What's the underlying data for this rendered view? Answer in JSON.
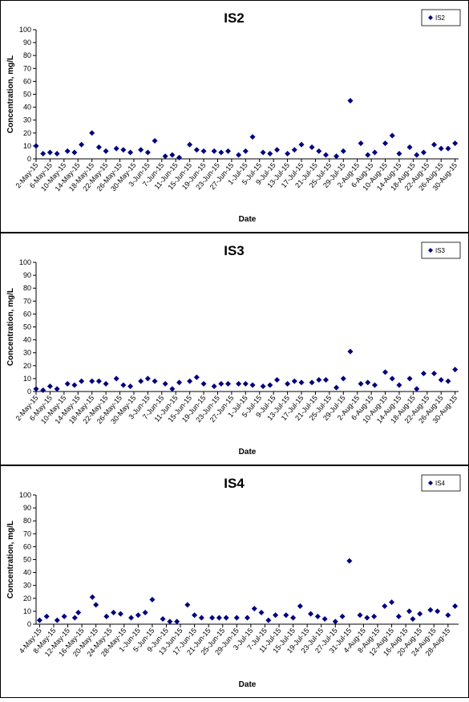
{
  "chart_data": [
    {
      "type": "scatter",
      "title": "IS2",
      "x_label": "Date",
      "y_label": "Concentration, mg/L",
      "x": [
        "2-May-15",
        "4-May-15",
        "6-May-15",
        "8-May-15",
        "11-May-15",
        "13-May-15",
        "15-May-15",
        "18-May-15",
        "20-May-15",
        "22-May-15",
        "25-May-15",
        "27-May-15",
        "29-May-15",
        "1-Jun-15",
        "3-Jun-15",
        "5-Jun-15",
        "8-Jun-15",
        "10-Jun-15",
        "12-Jun-15",
        "15-Jun-15",
        "17-Jun-15",
        "19-Jun-15",
        "22-Jun-15",
        "24-Jun-15",
        "26-Jun-15",
        "29-Jun-15",
        "1-Jul-15",
        "3-Jul-15",
        "6-Jul-15",
        "8-Jul-15",
        "10-Jul-15",
        "13-Jul-15",
        "15-Jul-15",
        "17-Jul-15",
        "20-Jul-15",
        "22-Jul-15",
        "24-Jul-15",
        "27-Jul-15",
        "29-Jul-15",
        "31-Jul-15",
        "3-Aug-15",
        "5-Aug-15",
        "7-Aug-15",
        "10-Aug-15",
        "12-Aug-15",
        "14-Aug-15",
        "17-Aug-15",
        "19-Aug-15",
        "21-Aug-15",
        "24-Aug-15",
        "26-Aug-15",
        "28-Aug-15",
        "30-Aug-15"
      ],
      "series": [
        {
          "name": "IS2",
          "color": "#000080",
          "values": [
            10,
            4,
            5,
            4,
            6,
            5,
            11,
            20,
            9,
            6,
            8,
            7,
            5,
            7,
            5,
            14,
            2,
            3,
            1,
            11,
            7,
            6,
            6,
            5,
            6,
            3,
            6,
            17,
            5,
            4,
            7,
            4,
            7,
            11,
            9,
            6,
            3,
            2,
            6,
            45,
            12,
            3,
            5,
            12,
            18,
            4,
            9,
            3,
            5,
            11,
            8,
            8,
            12
          ]
        }
      ],
      "xlim": [
        "2-May-15",
        "31-Aug-15"
      ],
      "xticks": [
        "2-May-15",
        "6-May-15",
        "10-May-15",
        "14-May-15",
        "18-May-15",
        "22-May-15",
        "26-May-15",
        "30-May-15",
        "3-Jun-15",
        "7-Jun-15",
        "11-Jun-15",
        "15-Jun-15",
        "19-Jun-15",
        "23-Jun-15",
        "27-Jun-15",
        "1-Jul-15",
        "5-Jul-15",
        "9-Jul-15",
        "13-Jul-15",
        "17-Jul-15",
        "21-Jul-15",
        "25-Jul-15",
        "29-Jul-15",
        "2-Aug-15",
        "6-Aug-15",
        "10-Aug-15",
        "14-Aug-15",
        "18-Aug-15",
        "22-Aug-15",
        "26-Aug-15",
        "30-Aug-15"
      ],
      "ylim": [
        0,
        100
      ],
      "yticks": [
        0,
        10,
        20,
        30,
        40,
        50,
        60,
        70,
        80,
        90,
        100
      ],
      "legend": "top-right"
    },
    {
      "type": "scatter",
      "title": "IS3",
      "x_label": "Date",
      "y_label": "Concentration, mg/L",
      "x": [
        "2-May-15",
        "4-May-15",
        "6-May-15",
        "8-May-15",
        "11-May-15",
        "13-May-15",
        "15-May-15",
        "18-May-15",
        "20-May-15",
        "22-May-15",
        "25-May-15",
        "27-May-15",
        "29-May-15",
        "1-Jun-15",
        "3-Jun-15",
        "5-Jun-15",
        "8-Jun-15",
        "10-Jun-15",
        "12-Jun-15",
        "15-Jun-15",
        "17-Jun-15",
        "19-Jun-15",
        "22-Jun-15",
        "24-Jun-15",
        "26-Jun-15",
        "29-Jun-15",
        "1-Jul-15",
        "3-Jul-15",
        "6-Jul-15",
        "8-Jul-15",
        "10-Jul-15",
        "13-Jul-15",
        "15-Jul-15",
        "17-Jul-15",
        "20-Jul-15",
        "22-Jul-15",
        "24-Jul-15",
        "27-Jul-15",
        "29-Jul-15",
        "31-Jul-15",
        "3-Aug-15",
        "5-Aug-15",
        "7-Aug-15",
        "10-Aug-15",
        "12-Aug-15",
        "14-Aug-15",
        "17-Aug-15",
        "19-Aug-15",
        "21-Aug-15",
        "24-Aug-15",
        "26-Aug-15",
        "28-Aug-15",
        "30-Aug-15"
      ],
      "series": [
        {
          "name": "IS3",
          "color": "#000080",
          "values": [
            2,
            1,
            4,
            2,
            6,
            5,
            8,
            8,
            8,
            6,
            10,
            5,
            4,
            8,
            10,
            8,
            6,
            2,
            7,
            8,
            11,
            6,
            4,
            6,
            6,
            6,
            6,
            5,
            4,
            5,
            9,
            6,
            8,
            7,
            7,
            9,
            9,
            3,
            10,
            31,
            6,
            7,
            5,
            15,
            10,
            5,
            10,
            2,
            14,
            14,
            9,
            8,
            17
          ]
        }
      ],
      "xlim": [
        "2-May-15",
        "31-Aug-15"
      ],
      "xticks": [
        "2-May-15",
        "6-May-15",
        "10-May-15",
        "14-May-15",
        "18-May-15",
        "22-May-15",
        "26-May-15",
        "30-May-15",
        "3-Jun-15",
        "7-Jun-15",
        "11-Jun-15",
        "15-Jun-15",
        "19-Jun-15",
        "23-Jun-15",
        "27-Jun-15",
        "1-Jul-15",
        "5-Jul-15",
        "9-Jul-15",
        "13-Jul-15",
        "17-Jul-15",
        "21-Jul-15",
        "25-Jul-15",
        "29-Jul-15",
        "2-Aug-15",
        "6-Aug-15",
        "10-Aug-15",
        "14-Aug-15",
        "18-Aug-15",
        "22-Aug-15",
        "26-Aug-15",
        "30-Aug-15"
      ],
      "ylim": [
        0,
        100
      ],
      "yticks": [
        0,
        10,
        20,
        30,
        40,
        50,
        60,
        70,
        80,
        90,
        100
      ],
      "legend": "top-right"
    },
    {
      "type": "scatter",
      "title": "IS4",
      "x_label": "Date",
      "y_label": "Concentration, mg/L",
      "x": [
        "4-May-15",
        "6-May-15",
        "9-May-15",
        "11-May-15",
        "14-May-15",
        "15-May-15",
        "19-May-15",
        "20-May-15",
        "23-May-15",
        "25-May-15",
        "27-May-15",
        "30-May-15",
        "1-Jun-15",
        "3-Jun-15",
        "5-Jun-15",
        "8-Jun-15",
        "10-Jun-15",
        "12-Jun-15",
        "15-Jun-15",
        "17-Jun-15",
        "19-Jun-15",
        "22-Jun-15",
        "24-Jun-15",
        "26-Jun-15",
        "29-Jun-15",
        "2-Jul-15",
        "4-Jul-15",
        "6-Jul-15",
        "8-Jul-15",
        "10-Jul-15",
        "13-Jul-15",
        "15-Jul-15",
        "17-Jul-15",
        "20-Jul-15",
        "22-Jul-15",
        "24-Jul-15",
        "27-Jul-15",
        "29-Jul-15",
        "31-Jul-15",
        "3-Aug-15",
        "5-Aug-15",
        "7-Aug-15",
        "10-Aug-15",
        "12-Aug-15",
        "14-Aug-15",
        "17-Aug-15",
        "18-Aug-15",
        "20-Aug-15",
        "23-Aug-15",
        "25-Aug-15",
        "28-Aug-15",
        "30-Aug-15"
      ],
      "series": [
        {
          "name": "IS4",
          "color": "#000080",
          "values": [
            3,
            6,
            3,
            6,
            5,
            9,
            21,
            15,
            6,
            9,
            8,
            5,
            7,
            9,
            19,
            4,
            2,
            2,
            15,
            7,
            5,
            5,
            5,
            5,
            5,
            5,
            12,
            9,
            3,
            7,
            7,
            5,
            14,
            8,
            6,
            4,
            2,
            6,
            49,
            7,
            5,
            6,
            14,
            17,
            6,
            10,
            4,
            8,
            11,
            10,
            7,
            14
          ]
        }
      ],
      "xlim": [
        "3-May-15",
        "31-Aug-15"
      ],
      "xticks": [
        "4-May-15",
        "8-May-15",
        "12-May-15",
        "16-May-15",
        "20-May-15",
        "24-May-15",
        "28-May-15",
        "1-Jun-15",
        "5-Jun-15",
        "9-Jun-15",
        "13-Jun-15",
        "17-Jun-15",
        "21-Jun-15",
        "25-Jun-15",
        "29-Jun-15",
        "3-Jul-15",
        "7-Jul-15",
        "11-Jul-15",
        "15-Jul-15",
        "19-Jul-15",
        "23-Jul-15",
        "27-Jul-15",
        "31-Jul-15",
        "4-Aug-15",
        "8-Aug-15",
        "12-Aug-15",
        "16-Aug-15",
        "20-Aug-15",
        "24-Aug-15",
        "28-Aug-15"
      ],
      "ylim": [
        0,
        100
      ],
      "yticks": [
        0,
        10,
        20,
        30,
        40,
        50,
        60,
        70,
        80,
        90,
        100
      ],
      "legend": "top-right"
    }
  ]
}
